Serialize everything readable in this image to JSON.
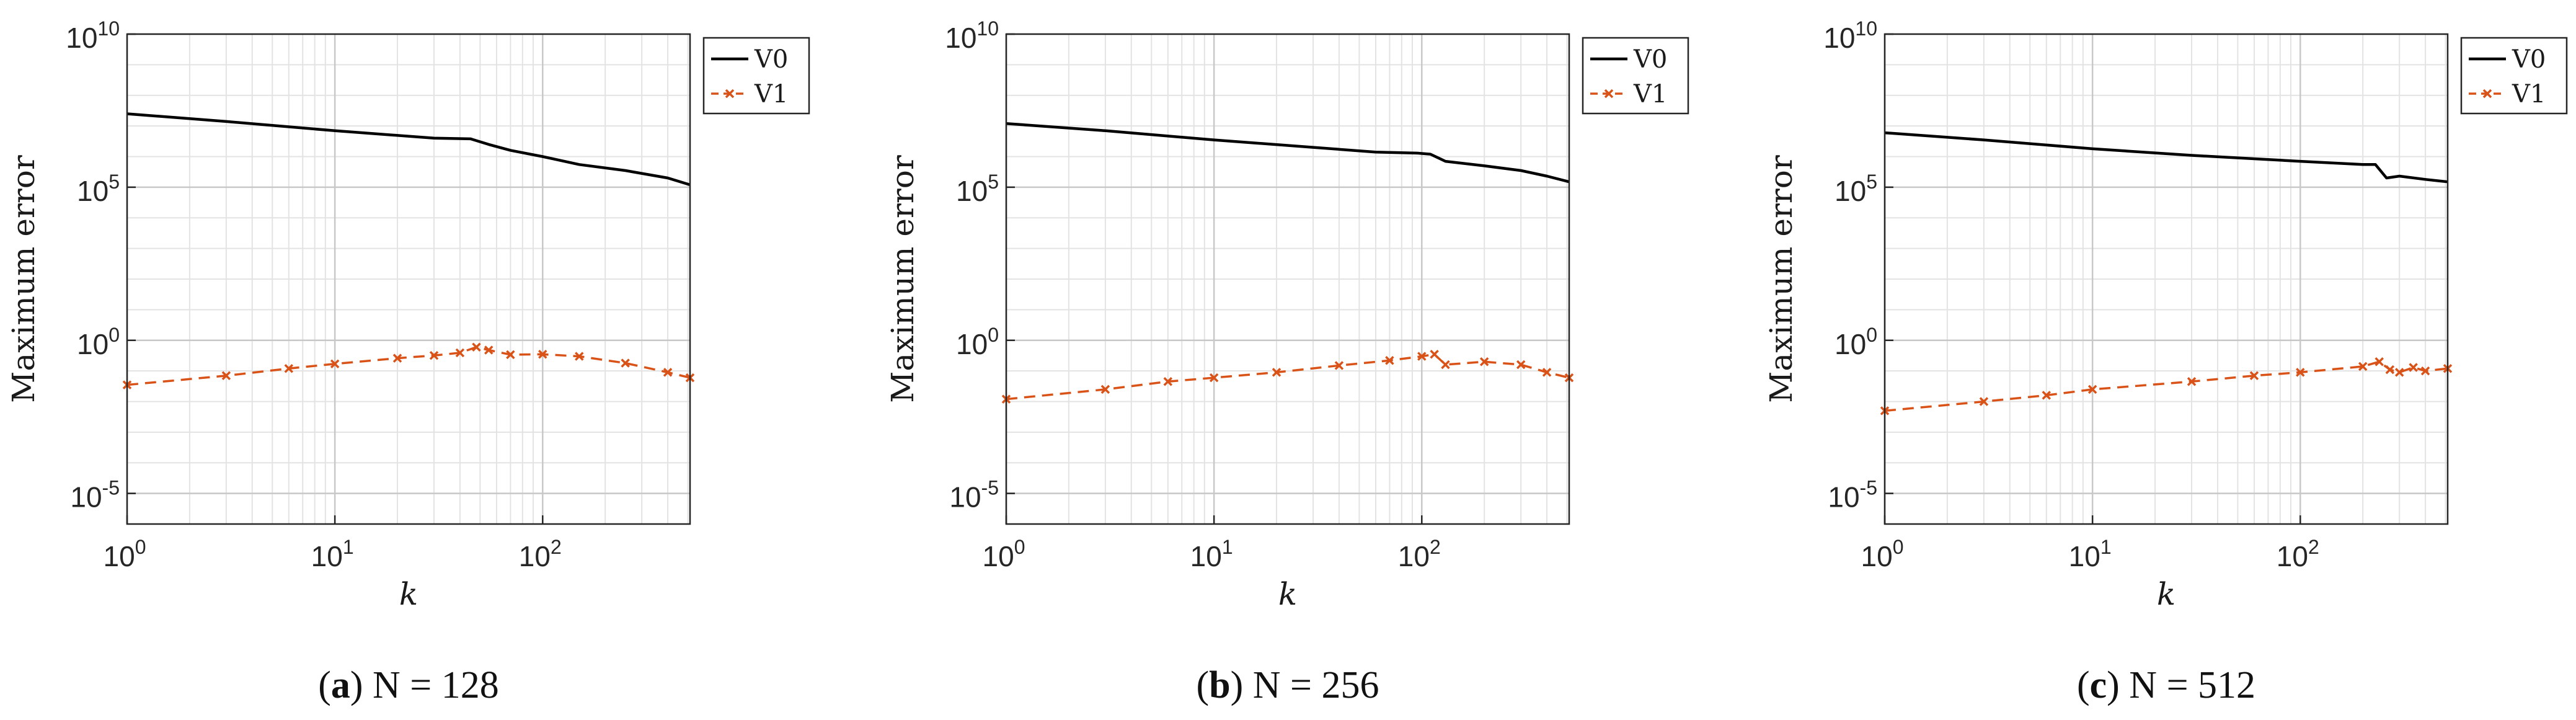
{
  "chart_data": [
    {
      "type": "line",
      "caption_letter": "a",
      "caption_text": "N = 128",
      "xlabel": "k",
      "ylabel": "Maximum error",
      "xscale": "log",
      "yscale": "log",
      "xlim": [
        1,
        512
      ],
      "ylim": [
        1e-06,
        10000000000
      ],
      "x_ticks": [
        1,
        10,
        100
      ],
      "x_tick_labels": [
        {
          "base": "10",
          "exp": "0"
        },
        {
          "base": "10",
          "exp": "1"
        },
        {
          "base": "10",
          "exp": "2"
        }
      ],
      "y_ticks": [
        1e-05,
        1,
        100000,
        10000000000
      ],
      "y_tick_labels": [
        {
          "base": "10",
          "exp": "-5"
        },
        {
          "base": "10",
          "exp": "0"
        },
        {
          "base": "10",
          "exp": "5"
        },
        {
          "base": "10",
          "exp": "10"
        }
      ],
      "grid": true,
      "minor_grid": true,
      "legend_position": "top-right-outside",
      "series": [
        {
          "name": "V0",
          "color": "#000000",
          "style": "solid",
          "marker": "none",
          "points": [
            [
              1,
              25000000
            ],
            [
              3,
              14000000
            ],
            [
              10,
              7000000
            ],
            [
              30,
              4000000
            ],
            [
              45,
              3800000
            ],
            [
              55,
              2500000
            ],
            [
              70,
              1600000
            ],
            [
              100,
              1000000
            ],
            [
              150,
              550000
            ],
            [
              250,
              350000
            ],
            [
              400,
              200000
            ],
            [
              512,
              120000
            ]
          ]
        },
        {
          "name": "V1",
          "color": "#d95319",
          "style": "dashed",
          "marker": "x",
          "points": [
            [
              1,
              0.035
            ],
            [
              3,
              0.07
            ],
            [
              6,
              0.12
            ],
            [
              10,
              0.17
            ],
            [
              20,
              0.26
            ],
            [
              30,
              0.32
            ],
            [
              40,
              0.39
            ],
            [
              48,
              0.6
            ],
            [
              55,
              0.48
            ],
            [
              70,
              0.34
            ],
            [
              100,
              0.35
            ],
            [
              150,
              0.3
            ],
            [
              250,
              0.18
            ],
            [
              400,
              0.09
            ],
            [
              512,
              0.06
            ]
          ]
        }
      ]
    },
    {
      "type": "line",
      "caption_letter": "b",
      "caption_text": "N = 256",
      "xlabel": "k",
      "ylabel": "Maximum error",
      "xscale": "log",
      "yscale": "log",
      "xlim": [
        1,
        512
      ],
      "ylim": [
        1e-06,
        10000000000
      ],
      "x_ticks": [
        1,
        10,
        100
      ],
      "x_tick_labels": [
        {
          "base": "10",
          "exp": "0"
        },
        {
          "base": "10",
          "exp": "1"
        },
        {
          "base": "10",
          "exp": "2"
        }
      ],
      "y_ticks": [
        1e-05,
        1,
        100000,
        10000000000
      ],
      "y_tick_labels": [
        {
          "base": "10",
          "exp": "-5"
        },
        {
          "base": "10",
          "exp": "0"
        },
        {
          "base": "10",
          "exp": "5"
        },
        {
          "base": "10",
          "exp": "10"
        }
      ],
      "grid": true,
      "minor_grid": true,
      "legend_position": "top-right-outside",
      "series": [
        {
          "name": "V0",
          "color": "#000000",
          "style": "solid",
          "marker": "none",
          "points": [
            [
              1,
              12000000
            ],
            [
              3,
              7000000
            ],
            [
              10,
              3500000
            ],
            [
              30,
              2000000
            ],
            [
              60,
              1400000
            ],
            [
              95,
              1300000
            ],
            [
              110,
              1200000
            ],
            [
              130,
              700000
            ],
            [
              200,
              500000
            ],
            [
              300,
              350000
            ],
            [
              400,
              230000
            ],
            [
              512,
              150000
            ]
          ]
        },
        {
          "name": "V1",
          "color": "#d95319",
          "style": "dashed",
          "marker": "x",
          "points": [
            [
              1,
              0.012
            ],
            [
              3,
              0.025
            ],
            [
              6,
              0.045
            ],
            [
              10,
              0.06
            ],
            [
              20,
              0.09
            ],
            [
              40,
              0.15
            ],
            [
              70,
              0.22
            ],
            [
              100,
              0.3
            ],
            [
              115,
              0.35
            ],
            [
              130,
              0.16
            ],
            [
              200,
              0.2
            ],
            [
              300,
              0.16
            ],
            [
              400,
              0.09
            ],
            [
              512,
              0.06
            ]
          ]
        }
      ]
    },
    {
      "type": "line",
      "caption_letter": "c",
      "caption_text": "N = 512",
      "xlabel": "k",
      "ylabel": "Maximum error",
      "xscale": "log",
      "yscale": "log",
      "xlim": [
        1,
        512
      ],
      "ylim": [
        1e-06,
        10000000000
      ],
      "x_ticks": [
        1,
        10,
        100
      ],
      "x_tick_labels": [
        {
          "base": "10",
          "exp": "0"
        },
        {
          "base": "10",
          "exp": "1"
        },
        {
          "base": "10",
          "exp": "2"
        }
      ],
      "y_ticks": [
        1e-05,
        1,
        100000,
        10000000000
      ],
      "y_tick_labels": [
        {
          "base": "10",
          "exp": "-5"
        },
        {
          "base": "10",
          "exp": "0"
        },
        {
          "base": "10",
          "exp": "5"
        },
        {
          "base": "10",
          "exp": "10"
        }
      ],
      "grid": true,
      "minor_grid": true,
      "legend_position": "top-right-outside",
      "series": [
        {
          "name": "V0",
          "color": "#000000",
          "style": "solid",
          "marker": "none",
          "points": [
            [
              1,
              6000000
            ],
            [
              3,
              3500000
            ],
            [
              10,
              1800000
            ],
            [
              30,
              1100000
            ],
            [
              100,
              700000
            ],
            [
              200,
              550000
            ],
            [
              230,
              550000
            ],
            [
              260,
              200000
            ],
            [
              300,
              230000
            ],
            [
              400,
              180000
            ],
            [
              512,
              150000
            ]
          ]
        },
        {
          "name": "V1",
          "color": "#d95319",
          "style": "dashed",
          "marker": "x",
          "points": [
            [
              1,
              0.005
            ],
            [
              3,
              0.01
            ],
            [
              6,
              0.016
            ],
            [
              10,
              0.025
            ],
            [
              30,
              0.045
            ],
            [
              60,
              0.07
            ],
            [
              100,
              0.09
            ],
            [
              200,
              0.14
            ],
            [
              240,
              0.2
            ],
            [
              270,
              0.11
            ],
            [
              300,
              0.09
            ],
            [
              350,
              0.13
            ],
            [
              400,
              0.1
            ],
            [
              512,
              0.12
            ]
          ]
        }
      ]
    }
  ]
}
